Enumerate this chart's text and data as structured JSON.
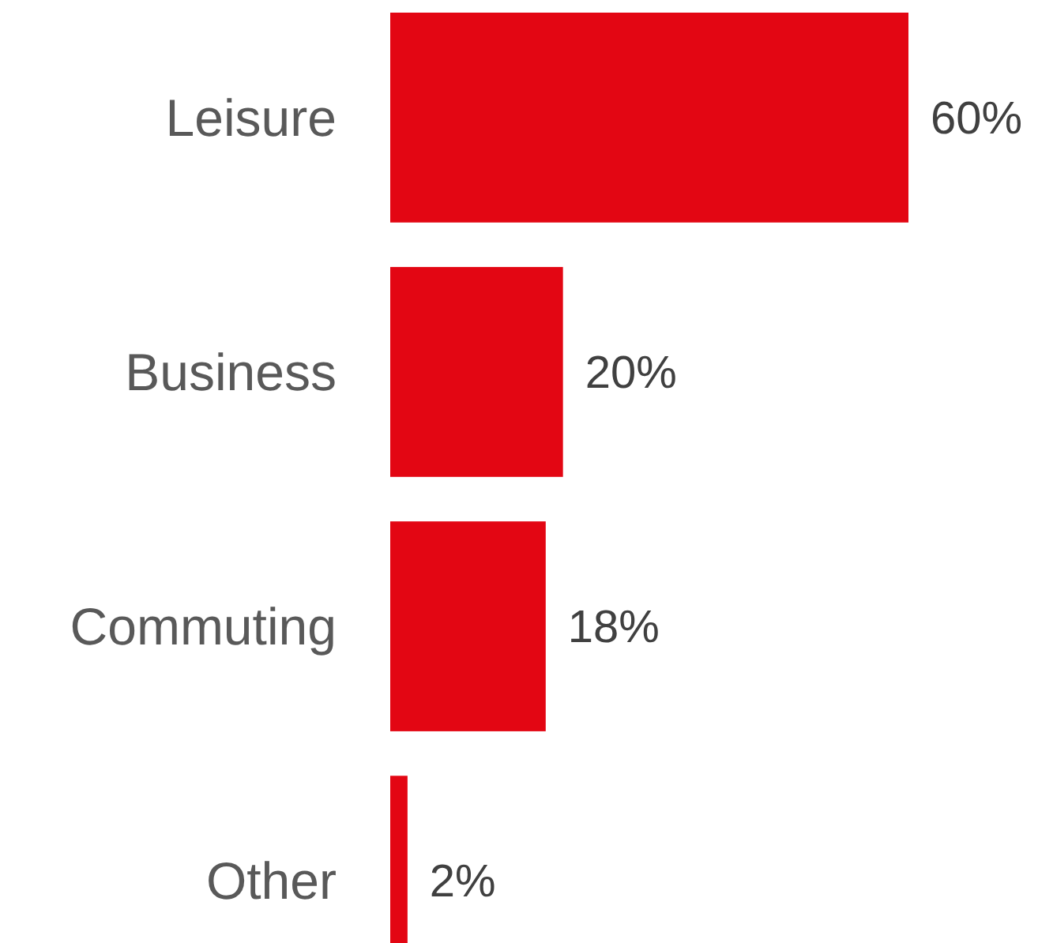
{
  "chart_data": {
    "type": "bar",
    "orientation": "horizontal",
    "categories": [
      "Leisure",
      "Business",
      "Commuting",
      "Other"
    ],
    "values": [
      60,
      20,
      18,
      2
    ],
    "value_labels": [
      "60%",
      "20%",
      "18%",
      "2%"
    ],
    "color": "#e30613"
  }
}
